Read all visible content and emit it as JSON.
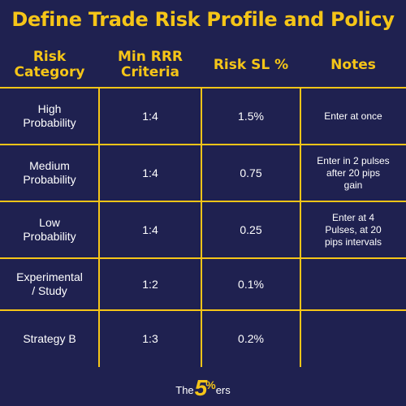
{
  "title": "Define Trade Risk Profile and Policy",
  "table": {
    "headers": [
      "Risk Category",
      "Min RRR Criteria",
      "Risk SL %",
      "Notes"
    ],
    "header_lines": [
      [
        "Risk",
        "Category"
      ],
      [
        "Min RRR",
        "Criteria"
      ],
      [
        "Risk SL %"
      ],
      [
        "Notes"
      ]
    ],
    "rows": [
      {
        "category": [
          "High",
          "Probability"
        ],
        "rrr": "1:4",
        "risk": "1.5%",
        "notes": [
          "Enter at once"
        ]
      },
      {
        "category": [
          "Medium",
          "Probability"
        ],
        "rrr": "1:4",
        "risk": "0.75",
        "notes": [
          "Enter in 2 pulses",
          "after 20 pips",
          "gain"
        ]
      },
      {
        "category": [
          "Low",
          "Probability"
        ],
        "rrr": "1:4",
        "risk": "0.25",
        "notes": [
          "Enter at 4",
          "Pulses, at 20",
          "pips intervals"
        ]
      },
      {
        "category": [
          "Experimental",
          "/ Study"
        ],
        "rrr": "1:2",
        "risk": "0.1%",
        "notes": []
      },
      {
        "category": [
          "Strategy B"
        ],
        "rrr": "1:3",
        "risk": "0.2%",
        "notes": []
      }
    ]
  },
  "logo": {
    "the": "The",
    "five": "5",
    "pct": "%",
    "ers": "ers"
  },
  "colors": {
    "background": "#1f2150",
    "accent": "#f5c518",
    "text": "#ffffff"
  }
}
